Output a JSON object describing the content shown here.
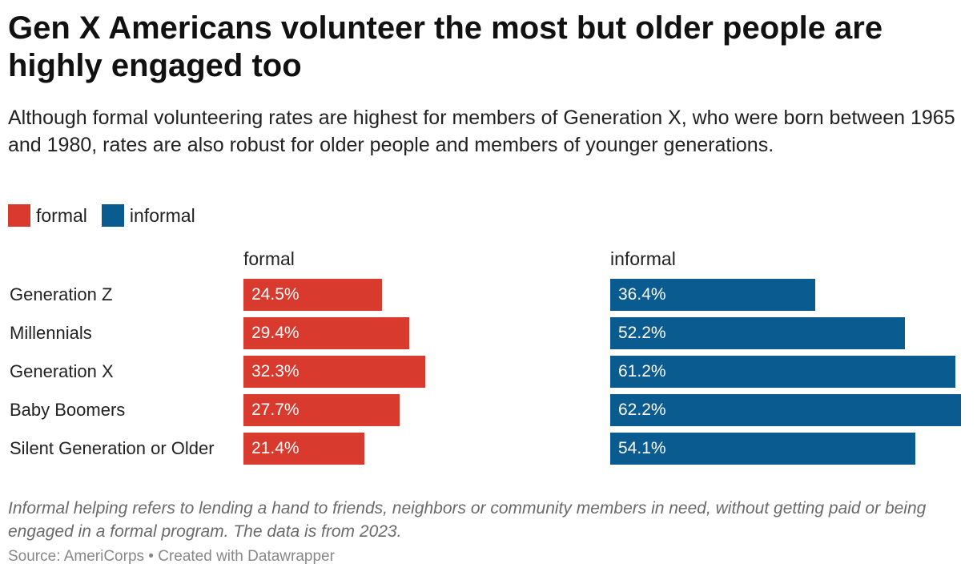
{
  "title": "Gen X Americans volunteer the most but older people are highly engaged too",
  "subtitle": "Although formal volunteering rates are highest for members of Generation X, who were born between 1965 and 1980, rates are also robust for older people and members of younger generations.",
  "legend": [
    {
      "label": "formal",
      "color": "#d93a2e"
    },
    {
      "label": "informal",
      "color": "#0a5b90"
    }
  ],
  "chart_data": {
    "type": "bar",
    "orientation": "horizontal",
    "categories": [
      "Generation Z",
      "Millennials",
      "Generation X",
      "Baby Boomers",
      "Silent Generation or Older"
    ],
    "series": [
      {
        "name": "formal",
        "color": "#d93a2e",
        "values": [
          24.5,
          29.4,
          32.3,
          27.7,
          21.4
        ],
        "labels": [
          "24.5%",
          "29.4%",
          "32.3%",
          "27.7%",
          "21.4%"
        ]
      },
      {
        "name": "informal",
        "color": "#0a5b90",
        "values": [
          36.4,
          52.2,
          61.2,
          62.2,
          54.1
        ],
        "labels": [
          "36.4%",
          "52.2%",
          "61.2%",
          "62.2%",
          "54.1%"
        ]
      }
    ],
    "title": "Gen X Americans volunteer the most but older people are highly engaged too",
    "unit": "%",
    "layout": "small multiples, side by side"
  },
  "notes": "Informal helping refers to lending a hand to friends, neighbors or community members in need, without getting paid or being engaged in a formal program. The data is from 2023.",
  "source": "Source: AmeriCorps • Created with Datawrapper"
}
